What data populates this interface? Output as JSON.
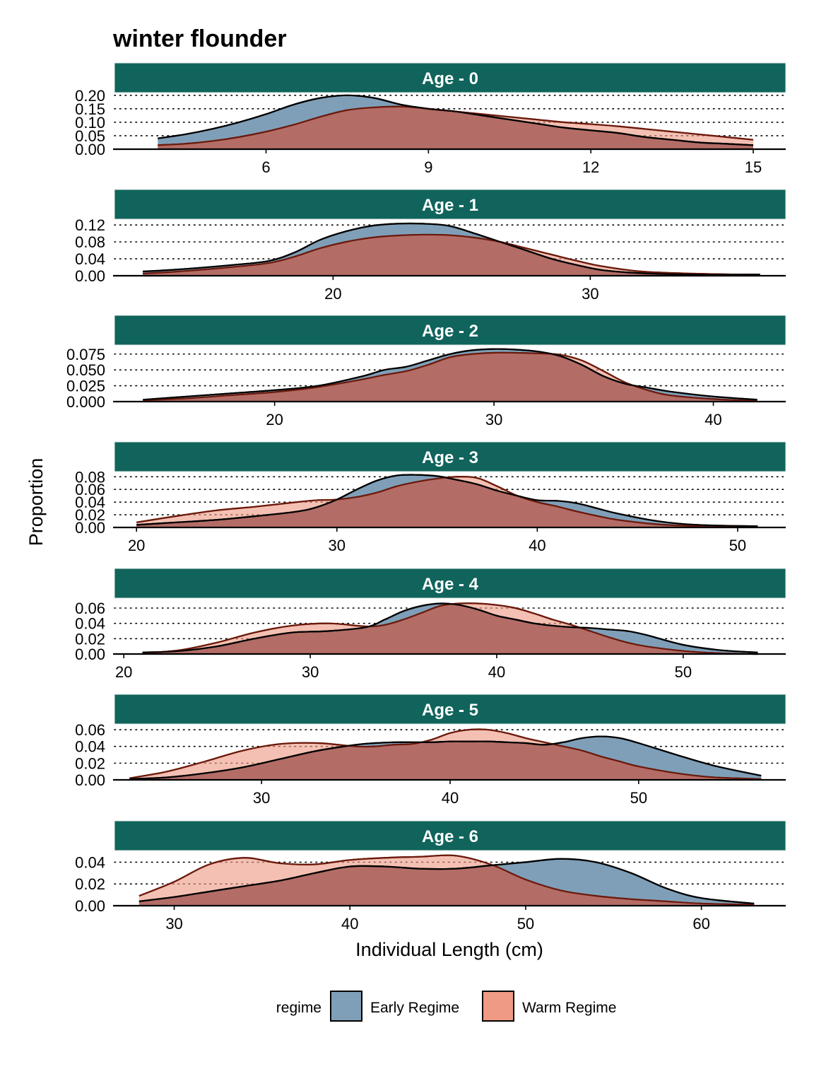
{
  "chart_data": {
    "type": "area",
    "title": "winter flounder",
    "xlabel": "Individual Length (cm)",
    "ylabel": "Proportion",
    "legend": {
      "title": "regime",
      "position": "bottom",
      "entries": [
        {
          "name": "Early Regime",
          "color": "#7f9fb8"
        },
        {
          "name": "Warm Regime",
          "color": "#ee9a85"
        }
      ]
    },
    "colors": {
      "strip_bg": "#10645c",
      "early_fill": "#7f9fb8",
      "warm_fill": "#ee9a85",
      "overlap_fill": "#b36c66",
      "warm_line": "#6b1a0c",
      "early_line": "#000000"
    },
    "panels": [
      {
        "label": "Age - 0",
        "xlim": [
          3.2,
          15.6
        ],
        "xticks": [
          6,
          9,
          12,
          15
        ],
        "ylim": [
          0,
          0.21
        ],
        "yticks": [
          "0.00",
          "0.05",
          "0.10",
          "0.15",
          "0.20"
        ],
        "yvals": [
          0,
          0.05,
          0.1,
          0.15,
          0.2
        ],
        "series": [
          {
            "name": "Early Regime",
            "x": [
              4,
              4.5,
              5,
              5.5,
              6,
              6.5,
              7,
              7.5,
              8,
              8.5,
              9,
              9.5,
              10,
              10.5,
              11,
              11.5,
              12,
              12.5,
              13,
              13.5,
              14,
              14.5,
              15
            ],
            "y": [
              0.04,
              0.055,
              0.075,
              0.1,
              0.13,
              0.165,
              0.19,
              0.2,
              0.19,
              0.165,
              0.15,
              0.14,
              0.125,
              0.11,
              0.095,
              0.08,
              0.07,
              0.06,
              0.045,
              0.035,
              0.025,
              0.02,
              0.015
            ]
          },
          {
            "name": "Warm Regime",
            "x": [
              4,
              4.5,
              5,
              5.5,
              6,
              6.5,
              7,
              7.5,
              8,
              8.5,
              9,
              9.5,
              10,
              10.5,
              11,
              11.5,
              12,
              12.5,
              13,
              13.5,
              14,
              14.5,
              15
            ],
            "y": [
              0.015,
              0.02,
              0.03,
              0.045,
              0.065,
              0.09,
              0.12,
              0.145,
              0.155,
              0.158,
              0.15,
              0.14,
              0.13,
              0.12,
              0.11,
              0.1,
              0.093,
              0.085,
              0.075,
              0.065,
              0.055,
              0.045,
              0.035
            ]
          }
        ]
      },
      {
        "label": "Age - 1",
        "xlim": [
          11.5,
          37.6
        ],
        "xticks": [
          20,
          30
        ],
        "ylim": [
          0,
          0.132
        ],
        "yticks": [
          "0.00",
          "0.04",
          "0.08",
          "0.12"
        ],
        "yvals": [
          0,
          0.04,
          0.08,
          0.12
        ],
        "series": [
          {
            "name": "Early Regime",
            "x": [
              12.6,
              14,
              16,
              17.5,
              18.5,
              19.5,
              20.5,
              21.5,
              22.5,
              23.5,
              24.5,
              25.5,
              26.5,
              27.5,
              28.5,
              29.5,
              30.5,
              32,
              34,
              36.6
            ],
            "y": [
              0.01,
              0.015,
              0.025,
              0.035,
              0.055,
              0.085,
              0.105,
              0.118,
              0.123,
              0.123,
              0.118,
              0.1,
              0.08,
              0.06,
              0.04,
              0.025,
              0.013,
              0.006,
              0.003,
              0.003
            ]
          },
          {
            "name": "Warm Regime",
            "x": [
              12.6,
              14,
              16,
              17.5,
              18.5,
              19.5,
              20.5,
              21.5,
              22.5,
              23.5,
              24.5,
              25.5,
              26.5,
              27.5,
              28.5,
              29.5,
              30.5,
              32,
              34,
              36.6
            ],
            "y": [
              0.005,
              0.01,
              0.02,
              0.03,
              0.045,
              0.065,
              0.08,
              0.09,
              0.095,
              0.097,
              0.096,
              0.09,
              0.08,
              0.065,
              0.05,
              0.035,
              0.022,
              0.01,
              0.005,
              0.002
            ]
          }
        ]
      },
      {
        "label": "Age - 2",
        "xlim": [
          12.7,
          43.3
        ],
        "xticks": [
          20,
          30,
          40
        ],
        "ylim": [
          0,
          0.087
        ],
        "yticks": [
          "0.000",
          "0.025",
          "0.050",
          "0.075"
        ],
        "yvals": [
          0,
          0.025,
          0.05,
          0.075
        ],
        "series": [
          {
            "name": "Early Regime",
            "x": [
              14,
              16,
              18,
              20,
              22,
              24,
              25,
              26,
              27,
              28,
              29,
              30,
              31,
              32,
              33,
              34,
              35,
              36,
              37,
              38,
              40,
              42
            ],
            "y": [
              0.003,
              0.008,
              0.013,
              0.018,
              0.025,
              0.04,
              0.05,
              0.055,
              0.065,
              0.075,
              0.081,
              0.083,
              0.082,
              0.079,
              0.072,
              0.058,
              0.04,
              0.028,
              0.022,
              0.016,
              0.008,
              0.003
            ]
          },
          {
            "name": "Warm Regime",
            "x": [
              14,
              16,
              18,
              20,
              22,
              24,
              25,
              26,
              27,
              28,
              29,
              30,
              31,
              32,
              33,
              34,
              35,
              36,
              37,
              38,
              40,
              42
            ],
            "y": [
              0.002,
              0.005,
              0.01,
              0.015,
              0.023,
              0.035,
              0.042,
              0.048,
              0.058,
              0.07,
              0.075,
              0.077,
              0.077,
              0.076,
              0.074,
              0.065,
              0.048,
              0.03,
              0.018,
              0.01,
              0.004,
              0.001
            ]
          }
        ]
      },
      {
        "label": "Age - 3",
        "xlim": [
          18.9,
          52.4
        ],
        "xticks": [
          20,
          30,
          40,
          50
        ],
        "ylim": [
          0,
          0.087
        ],
        "yticks": [
          "0.00",
          "0.02",
          "0.04",
          "0.06",
          "0.08"
        ],
        "yvals": [
          0,
          0.02,
          0.04,
          0.06,
          0.08
        ],
        "series": [
          {
            "name": "Early Regime",
            "x": [
              20,
              22,
              24,
              26,
              28,
              29,
              30,
              31,
              32,
              33,
              34,
              35,
              36,
              37,
              38,
              39,
              40,
              41,
              42,
              43,
              44,
              46,
              48,
              51
            ],
            "y": [
              0.004,
              0.008,
              0.012,
              0.018,
              0.025,
              0.032,
              0.044,
              0.06,
              0.074,
              0.082,
              0.083,
              0.081,
              0.075,
              0.068,
              0.058,
              0.05,
              0.043,
              0.042,
              0.038,
              0.03,
              0.022,
              0.01,
              0.004,
              0.002
            ]
          },
          {
            "name": "Warm Regime",
            "x": [
              20,
              22,
              24,
              26,
              28,
              29,
              30,
              31,
              32,
              33,
              34,
              35,
              36,
              37,
              38,
              39,
              40,
              41,
              42,
              43,
              44,
              46,
              48,
              51
            ],
            "y": [
              0.008,
              0.018,
              0.027,
              0.033,
              0.04,
              0.043,
              0.044,
              0.048,
              0.055,
              0.065,
              0.072,
              0.077,
              0.08,
              0.078,
              0.065,
              0.05,
              0.04,
              0.033,
              0.025,
              0.018,
              0.012,
              0.005,
              0.002,
              0.001
            ]
          }
        ]
      },
      {
        "label": "Age - 4",
        "xlim": [
          19.5,
          55.5
        ],
        "xticks": [
          20,
          30,
          40,
          50
        ],
        "ylim": [
          0,
          0.072
        ],
        "yticks": [
          "0.00",
          "0.02",
          "0.04",
          "0.06"
        ],
        "yvals": [
          0,
          0.02,
          0.04,
          0.06
        ],
        "series": [
          {
            "name": "Early Regime",
            "x": [
              21,
              23,
              25,
              27,
              29,
              31,
              33,
              34,
              35,
              36,
              37,
              38,
              39,
              40,
              41,
              42,
              43,
              44,
              45,
              46,
              47,
              48,
              50,
              52,
              54
            ],
            "y": [
              0.002,
              0.004,
              0.01,
              0.02,
              0.028,
              0.03,
              0.035,
              0.045,
              0.056,
              0.063,
              0.066,
              0.064,
              0.058,
              0.05,
              0.045,
              0.04,
              0.037,
              0.035,
              0.034,
              0.032,
              0.03,
              0.025,
              0.012,
              0.005,
              0.002
            ]
          },
          {
            "name": "Warm Regime",
            "x": [
              21,
              23,
              25,
              27,
              29,
              31,
              33,
              34,
              35,
              36,
              37,
              38,
              39,
              40,
              41,
              42,
              43,
              44,
              45,
              46,
              47,
              48,
              50,
              52,
              54
            ],
            "y": [
              0.001,
              0.005,
              0.015,
              0.028,
              0.037,
              0.04,
              0.036,
              0.038,
              0.045,
              0.054,
              0.063,
              0.066,
              0.066,
              0.064,
              0.06,
              0.053,
              0.045,
              0.038,
              0.03,
              0.022,
              0.015,
              0.01,
              0.004,
              0.001,
              0.0
            ]
          }
        ]
      },
      {
        "label": "Age - 5",
        "xlim": [
          22.2,
          57.8
        ],
        "xticks": [
          30,
          40,
          50
        ],
        "ylim": [
          0,
          0.066
        ],
        "yticks": [
          "0.00",
          "0.02",
          "0.04",
          "0.06"
        ],
        "yvals": [
          0,
          0.02,
          0.04,
          0.06
        ],
        "series": [
          {
            "name": "Early Regime",
            "x": [
              23,
              25,
              27,
              29,
              31,
              33,
              35,
              36,
              37,
              38,
              39,
              40,
              41,
              42,
              43,
              44,
              45,
              46,
              47,
              48,
              49,
              50,
              52,
              54,
              56.5
            ],
            "y": [
              0.001,
              0.003,
              0.008,
              0.015,
              0.025,
              0.035,
              0.042,
              0.044,
              0.045,
              0.045,
              0.045,
              0.046,
              0.046,
              0.046,
              0.045,
              0.044,
              0.042,
              0.045,
              0.05,
              0.052,
              0.05,
              0.044,
              0.03,
              0.017,
              0.005
            ]
          },
          {
            "name": "Warm Regime",
            "x": [
              23,
              25,
              27,
              29,
              31,
              33,
              35,
              36,
              37,
              38,
              39,
              40,
              41,
              42,
              43,
              44,
              45,
              46,
              47,
              48,
              49,
              50,
              52,
              54,
              56.5
            ],
            "y": [
              0.002,
              0.01,
              0.022,
              0.035,
              0.043,
              0.044,
              0.04,
              0.04,
              0.042,
              0.043,
              0.048,
              0.056,
              0.06,
              0.06,
              0.056,
              0.05,
              0.045,
              0.04,
              0.035,
              0.028,
              0.022,
              0.016,
              0.008,
              0.003,
              0.001
            ]
          }
        ]
      },
      {
        "label": "Age - 6",
        "xlim": [
          26.6,
          64.8
        ],
        "xticks": [
          30,
          40,
          50,
          60
        ],
        "ylim": [
          0,
          0.05
        ],
        "yticks": [
          "0.00",
          "0.02",
          "0.04"
        ],
        "yvals": [
          0,
          0.02,
          0.04
        ],
        "series": [
          {
            "name": "Early Regime",
            "x": [
              28,
              30,
              32,
              34,
              36,
              38,
              40,
              42,
              44,
              46,
              48,
              50,
              52,
              54,
              56,
              58,
              60,
              63
            ],
            "y": [
              0.004,
              0.008,
              0.013,
              0.018,
              0.023,
              0.03,
              0.036,
              0.036,
              0.034,
              0.034,
              0.037,
              0.04,
              0.043,
              0.04,
              0.03,
              0.016,
              0.007,
              0.002
            ]
          },
          {
            "name": "Warm Regime",
            "x": [
              28,
              30,
              32,
              34,
              36,
              38,
              40,
              42,
              44,
              46,
              48,
              50,
              52,
              54,
              56,
              58,
              60,
              63
            ],
            "y": [
              0.009,
              0.022,
              0.038,
              0.044,
              0.039,
              0.038,
              0.042,
              0.044,
              0.045,
              0.046,
              0.038,
              0.024,
              0.014,
              0.009,
              0.006,
              0.004,
              0.002,
              0.001
            ]
          }
        ]
      }
    ]
  }
}
